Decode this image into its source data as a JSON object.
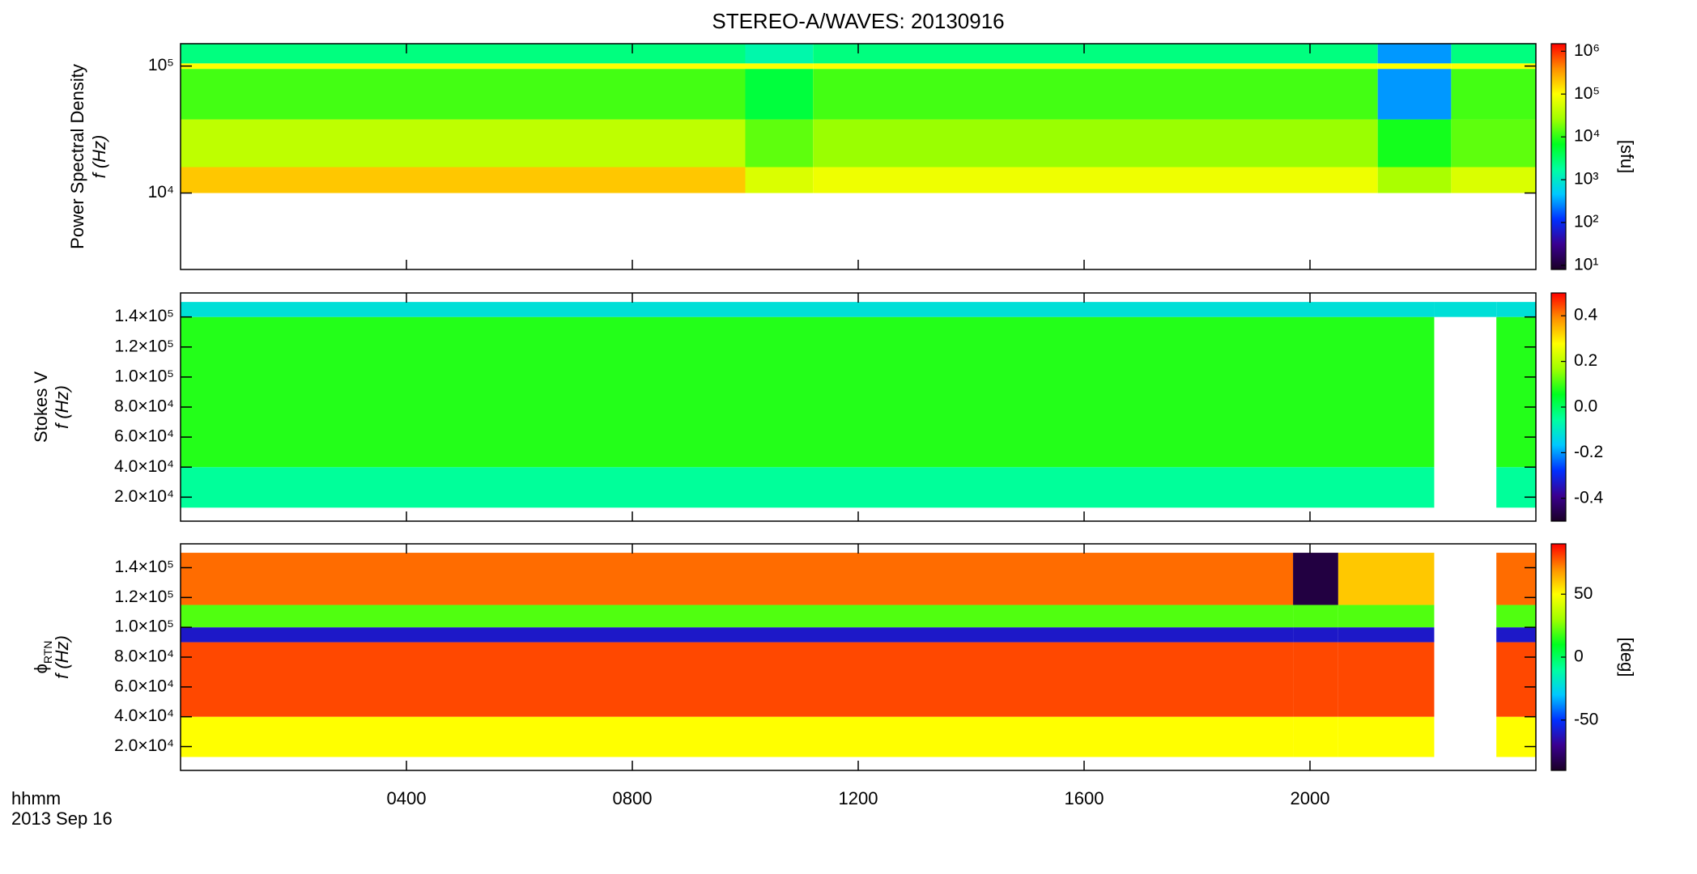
{
  "title": "STEREO-A/WAVES: 20130916",
  "colormap": [
    "#1a0026",
    "#3a0090",
    "#0030ff",
    "#00c8ff",
    "#00ffa0",
    "#00ff20",
    "#a0ff00",
    "#ffff00",
    "#ff9000",
    "#ff0000"
  ],
  "x_axis": {
    "label": "hhmm",
    "date": "2013 Sep 16",
    "xlim": [
      0,
      24
    ],
    "xticks": [
      {
        "value": 4,
        "label": "0400"
      },
      {
        "value": 8,
        "label": "0800"
      },
      {
        "value": 12,
        "label": "1200"
      },
      {
        "value": 16,
        "label": "1600"
      },
      {
        "value": 20,
        "label": "2000"
      }
    ]
  },
  "chart_data": [
    {
      "type": "heatmap",
      "quantity": "Power Spectral Density",
      "ylabel": "f (Hz)",
      "ylog": true,
      "ylim": [
        2500,
        150000
      ],
      "yticks": [
        {
          "value": 10000,
          "label": "10⁴"
        },
        {
          "value": 100000,
          "label": "10⁵"
        }
      ],
      "x_edges": [
        0,
        10,
        11.2,
        21.2,
        22.5,
        24
      ],
      "y_edges": [
        10000,
        16000,
        38000,
        95000,
        105000,
        150000
      ],
      "z": [
        [
          200000,
          60000,
          80000,
          30000,
          60000
        ],
        [
          40000,
          15000,
          25000,
          8000,
          15000
        ],
        [
          12000,
          5000,
          12000,
          300,
          12000
        ],
        [
          100000,
          100000,
          100000,
          100000,
          100000
        ],
        [
          2500,
          1500,
          2500,
          300,
          2500
        ]
      ],
      "zlog": true,
      "zlim": [
        8,
        1500000
      ],
      "zticks": [
        {
          "value": 10,
          "label": "10¹"
        },
        {
          "value": 100,
          "label": "10²"
        },
        {
          "value": 1000,
          "label": "10³"
        },
        {
          "value": 10000,
          "label": "10⁴"
        },
        {
          "value": 100000,
          "label": "10⁵"
        },
        {
          "value": 1000000,
          "label": "10⁶"
        }
      ],
      "zlabel": "[sfu]"
    },
    {
      "type": "heatmap",
      "quantity": "Stokes V",
      "ylabel": "f (Hz)",
      "ylog": false,
      "ylim": [
        4000,
        156000
      ],
      "yticks": [
        {
          "value": 20000,
          "label": "2.0×10⁴"
        },
        {
          "value": 40000,
          "label": "4.0×10⁴"
        },
        {
          "value": 60000,
          "label": "6.0×10⁴"
        },
        {
          "value": 80000,
          "label": "8.0×10⁴"
        },
        {
          "value": 100000,
          "label": "1.0×10⁵"
        },
        {
          "value": 120000,
          "label": "1.2×10⁵"
        },
        {
          "value": 140000,
          "label": "1.4×10⁵"
        }
      ],
      "x_edges": [
        0,
        22.2,
        23.3,
        24
      ],
      "y_edges": [
        13000,
        40000,
        140000,
        150000
      ],
      "z": [
        [
          -0.05,
          null,
          -0.05
        ],
        [
          0.08,
          null,
          0.08
        ],
        [
          -0.12,
          -0.12,
          -0.12
        ]
      ],
      "zlog": false,
      "zlim": [
        -0.5,
        0.5
      ],
      "zticks": [
        -0.4,
        -0.2,
        {
          "value": 0,
          "label": "0.0"
        },
        0.2,
        0.4
      ]
    },
    {
      "type": "heatmap",
      "quantity": "ϕ",
      "quantity_subscript": "RTN",
      "ylabel": "f (Hz)",
      "ylog": false,
      "ylim": [
        4000,
        156000
      ],
      "yticks": [
        {
          "value": 20000,
          "label": "2.0×10⁴"
        },
        {
          "value": 40000,
          "label": "4.0×10⁴"
        },
        {
          "value": 60000,
          "label": "6.0×10⁴"
        },
        {
          "value": 80000,
          "label": "8.0×10⁴"
        },
        {
          "value": 100000,
          "label": "1.0×10⁵"
        },
        {
          "value": 120000,
          "label": "1.2×10⁵"
        },
        {
          "value": 140000,
          "label": "1.4×10⁵"
        }
      ],
      "x_edges": [
        0,
        19.7,
        20.5,
        22.2,
        23.3,
        24
      ],
      "y_edges": [
        13000,
        40000,
        90000,
        100000,
        115000,
        150000
      ],
      "z": [
        [
          50,
          50,
          50,
          null,
          50
        ],
        [
          80,
          80,
          80,
          null,
          80
        ],
        [
          -60,
          -60,
          -60,
          null,
          -60
        ],
        [
          20,
          20,
          20,
          null,
          20
        ],
        [
          75,
          -85,
          60,
          null,
          75
        ]
      ],
      "zlog": false,
      "zlim": [
        -90,
        90
      ],
      "zticks": [
        -50,
        0,
        50
      ],
      "zlabel": "[deg]"
    }
  ]
}
